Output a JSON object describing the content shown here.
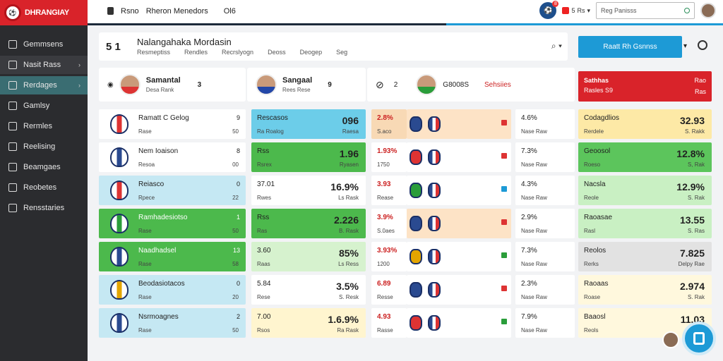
{
  "brand": {
    "name": "DHRANGIAY",
    "logo_text": "⚽"
  },
  "sidebar": {
    "items": [
      {
        "label": "Gemmsens"
      },
      {
        "label": "Nasit Rass"
      },
      {
        "label": "Rerdages"
      },
      {
        "label": "Gamlsy"
      },
      {
        "label": "Rermles"
      },
      {
        "label": "Reelising"
      },
      {
        "label": "Beamgaes"
      },
      {
        "label": "Reobetes"
      },
      {
        "label": "Rensstaries"
      }
    ]
  },
  "topbar": {
    "items": [
      "Rsno",
      "Rheron Menedors",
      "Ol6"
    ],
    "notif_count": "5",
    "notif_label": "Rs",
    "search_placeholder": "Reg Panisss",
    "badge": "8"
  },
  "header": {
    "score": "5 1",
    "title": "Nalangahaka Mordasin",
    "tabs": [
      "Resmeptiss",
      "Rendles",
      "Recrslyogn",
      "Deoss",
      "Deogep",
      "Seg"
    ]
  },
  "cta": {
    "label": "Raatt Rh Gsnnss"
  },
  "featured": [
    {
      "name": "Samantal",
      "sub": "Desa Rank",
      "num": "3"
    },
    {
      "name": "Sangaal",
      "sub": "Rees Rese",
      "num": "9"
    },
    {
      "num": "2",
      "label1": "G8008S",
      "label2": "Sehsiies"
    }
  ],
  "redcard": {
    "title": "Sathhas",
    "sub": "Rasles S9",
    "v1": "Rao",
    "v2": "Ras"
  },
  "rows": [
    {
      "name": "Ramatt C Gelog",
      "sub": "Rase",
      "n1": "9",
      "n2": "50",
      "c2l": "Rescasos",
      "c2s": "Ra Roalog",
      "c2b": "096",
      "c2r": "Raesa",
      "c3": "2.8%",
      "c3s": "S.aco",
      "c4": "4.6%",
      "c4s": "Nase Raw",
      "c5l": "Codagdlios",
      "c5s": "Rerdele",
      "c5b": "32.93",
      "c5r": "S. Rakk"
    },
    {
      "name": "Nem Ioaison",
      "sub": "Resoa",
      "n1": "8",
      "n2": "00",
      "c2l": "Rss",
      "c2s": "Rsrex",
      "c2b": "1.96",
      "c2r": "Ryasen",
      "c3": "1.93%",
      "c3s": "1750",
      "c4": "7.3%",
      "c4s": "Nase Raw",
      "c5l": "Geoosol",
      "c5s": "Roeso",
      "c5b": "12.8%",
      "c5r": "S, Rak"
    },
    {
      "name": "Reiasco",
      "sub": "Rpece",
      "n1": "0",
      "n2": "22",
      "c2l": "37.01",
      "c2s": "Rwes",
      "c2b": "16.9%",
      "c2r": "Ls Rask",
      "c3": "3.93",
      "c3s": "Rease",
      "c4": "4.3%",
      "c4s": "Nase Raw",
      "c5l": "Nacsla",
      "c5s": "Reole",
      "c5b": "12.9%",
      "c5r": "S. Rak"
    },
    {
      "name": "Ramhadesiotso",
      "sub": "Rase",
      "n1": "1",
      "n2": "50",
      "c2l": "Rss",
      "c2s": "Ras",
      "c2b": "2.226",
      "c2r": "B. Rask",
      "c3": "3.9%",
      "c3s": "S.0aes",
      "c4": "2.9%",
      "c4s": "Nase Raw",
      "c5l": "Raoasae",
      "c5s": "Rasl",
      "c5b": "13.55",
      "c5r": "S. Ras"
    },
    {
      "name": "Naadhadsel",
      "sub": "Rase",
      "n1": "13",
      "n2": "58",
      "c2l": "3.60",
      "c2s": "Raas",
      "c2b": "85%",
      "c2r": "Ls Ress",
      "c3": "3.93%",
      "c3s": "1200",
      "c4": "7.3%",
      "c4s": "Nase Raw",
      "c5l": "Reolos",
      "c5s": "Rerks",
      "c5b": "7.825",
      "c5r": "Delpy Rae"
    },
    {
      "name": "Beodasiotacos",
      "sub": "Rase",
      "n1": "0",
      "n2": "20",
      "c2l": "5.84",
      "c2s": "Rese",
      "c2b": "3.5%",
      "c2r": "S. Resk",
      "c3": "6.89",
      "c3s": "Resse",
      "c4": "2.3%",
      "c4s": "Nase Raw",
      "c5l": "Raoaas",
      "c5s": "Roase",
      "c5b": "2.974",
      "c5r": "S. Rak"
    },
    {
      "name": "Nsrmoagnes",
      "sub": "Rase",
      "n1": "2",
      "n2": "50",
      "c2l": "7.00",
      "c2s": "Rsos",
      "c2b": "1.6.9%",
      "c2r": "Ra Rask",
      "c3": "4.93",
      "c3s": "Rasse",
      "c4": "7.9%",
      "c4s": "Nase Raw",
      "c5l": "Baaosl",
      "c5s": "Reols",
      "c5b": "11.03",
      "c5r": "S. Rak"
    }
  ],
  "colors": {
    "accent": "#1d9ad6",
    "brand": "#d9232a",
    "sidebar": "#2b2c2f",
    "green": "#4cb94c",
    "lightgreen": "#c9f0c3",
    "lightblue": "#bfe6f3",
    "peach": "#fde3c6",
    "cream": "#fff8dd"
  }
}
